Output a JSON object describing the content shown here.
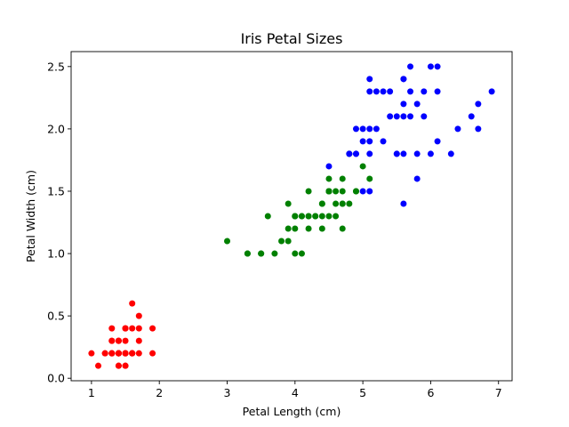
{
  "chart_data": {
    "type": "scatter",
    "title": "Iris Petal Sizes",
    "xlabel": "Petal Length (cm)",
    "ylabel": "Petal Width (cm)",
    "xlim": [
      0.7,
      7.2
    ],
    "ylim": [
      -0.02,
      2.62
    ],
    "xticks": [
      1,
      2,
      3,
      4,
      5,
      6,
      7
    ],
    "xtick_labels": [
      "1",
      "2",
      "3",
      "4",
      "5",
      "6",
      "7"
    ],
    "yticks": [
      0.0,
      0.5,
      1.0,
      1.5,
      2.0,
      2.5
    ],
    "ytick_labels": [
      "0.0",
      "0.5",
      "1.0",
      "1.5",
      "2.0",
      "2.5"
    ],
    "grid": false,
    "series": [
      {
        "color": "#ff0000",
        "points": [
          [
            1.4,
            0.2
          ],
          [
            1.4,
            0.2
          ],
          [
            1.3,
            0.2
          ],
          [
            1.5,
            0.2
          ],
          [
            1.4,
            0.2
          ],
          [
            1.7,
            0.4
          ],
          [
            1.4,
            0.3
          ],
          [
            1.5,
            0.2
          ],
          [
            1.4,
            0.2
          ],
          [
            1.5,
            0.1
          ],
          [
            1.5,
            0.2
          ],
          [
            1.6,
            0.2
          ],
          [
            1.4,
            0.1
          ],
          [
            1.1,
            0.1
          ],
          [
            1.2,
            0.2
          ],
          [
            1.5,
            0.4
          ],
          [
            1.3,
            0.4
          ],
          [
            1.4,
            0.3
          ],
          [
            1.7,
            0.3
          ],
          [
            1.5,
            0.3
          ],
          [
            1.7,
            0.2
          ],
          [
            1.5,
            0.4
          ],
          [
            1.0,
            0.2
          ],
          [
            1.7,
            0.5
          ],
          [
            1.9,
            0.2
          ],
          [
            1.6,
            0.2
          ],
          [
            1.6,
            0.4
          ],
          [
            1.5,
            0.2
          ],
          [
            1.4,
            0.2
          ],
          [
            1.6,
            0.2
          ],
          [
            1.6,
            0.2
          ],
          [
            1.5,
            0.4
          ],
          [
            1.5,
            0.1
          ],
          [
            1.4,
            0.2
          ],
          [
            1.5,
            0.2
          ],
          [
            1.2,
            0.2
          ],
          [
            1.3,
            0.2
          ],
          [
            1.4,
            0.1
          ],
          [
            1.3,
            0.2
          ],
          [
            1.5,
            0.2
          ],
          [
            1.3,
            0.3
          ],
          [
            1.3,
            0.3
          ],
          [
            1.3,
            0.2
          ],
          [
            1.6,
            0.6
          ],
          [
            1.9,
            0.4
          ],
          [
            1.4,
            0.3
          ],
          [
            1.6,
            0.2
          ],
          [
            1.4,
            0.2
          ],
          [
            1.5,
            0.2
          ],
          [
            1.4,
            0.2
          ]
        ]
      },
      {
        "color": "#008000",
        "points": [
          [
            4.7,
            1.4
          ],
          [
            4.5,
            1.5
          ],
          [
            4.9,
            1.5
          ],
          [
            4.0,
            1.3
          ],
          [
            4.6,
            1.5
          ],
          [
            4.5,
            1.3
          ],
          [
            4.7,
            1.6
          ],
          [
            3.3,
            1.0
          ],
          [
            4.6,
            1.3
          ],
          [
            3.9,
            1.4
          ],
          [
            3.5,
            1.0
          ],
          [
            4.2,
            1.5
          ],
          [
            4.0,
            1.0
          ],
          [
            4.7,
            1.4
          ],
          [
            3.6,
            1.3
          ],
          [
            4.4,
            1.4
          ],
          [
            4.5,
            1.5
          ],
          [
            4.1,
            1.0
          ],
          [
            4.5,
            1.5
          ],
          [
            3.9,
            1.1
          ],
          [
            4.8,
            1.8
          ],
          [
            4.0,
            1.3
          ],
          [
            4.9,
            1.5
          ],
          [
            4.7,
            1.2
          ],
          [
            4.3,
            1.3
          ],
          [
            4.4,
            1.4
          ],
          [
            4.8,
            1.4
          ],
          [
            5.0,
            1.7
          ],
          [
            4.5,
            1.5
          ],
          [
            3.5,
            1.0
          ],
          [
            3.8,
            1.1
          ],
          [
            3.7,
            1.0
          ],
          [
            3.9,
            1.2
          ],
          [
            5.1,
            1.6
          ],
          [
            4.5,
            1.5
          ],
          [
            4.5,
            1.6
          ],
          [
            4.7,
            1.5
          ],
          [
            4.4,
            1.3
          ],
          [
            4.1,
            1.3
          ],
          [
            4.0,
            1.3
          ],
          [
            4.4,
            1.2
          ],
          [
            4.6,
            1.4
          ],
          [
            4.0,
            1.2
          ],
          [
            3.3,
            1.0
          ],
          [
            4.2,
            1.3
          ],
          [
            4.2,
            1.2
          ],
          [
            4.2,
            1.3
          ],
          [
            4.3,
            1.3
          ],
          [
            3.0,
            1.1
          ],
          [
            4.1,
            1.3
          ]
        ]
      },
      {
        "color": "#0000ff",
        "points": [
          [
            6.0,
            2.5
          ],
          [
            5.1,
            1.9
          ],
          [
            5.9,
            2.1
          ],
          [
            5.6,
            1.8
          ],
          [
            5.8,
            2.2
          ],
          [
            6.6,
            2.1
          ],
          [
            4.5,
            1.7
          ],
          [
            6.3,
            1.8
          ],
          [
            5.8,
            1.8
          ],
          [
            6.1,
            2.5
          ],
          [
            5.1,
            2.0
          ],
          [
            5.3,
            1.9
          ],
          [
            5.5,
            2.1
          ],
          [
            5.0,
            2.0
          ],
          [
            5.1,
            2.4
          ],
          [
            5.3,
            2.3
          ],
          [
            5.5,
            1.8
          ],
          [
            6.7,
            2.2
          ],
          [
            6.9,
            2.3
          ],
          [
            5.0,
            1.5
          ],
          [
            5.7,
            2.3
          ],
          [
            4.9,
            2.0
          ],
          [
            6.7,
            2.0
          ],
          [
            4.9,
            1.8
          ],
          [
            5.7,
            2.1
          ],
          [
            6.0,
            1.8
          ],
          [
            4.8,
            1.8
          ],
          [
            4.9,
            1.8
          ],
          [
            5.6,
            2.1
          ],
          [
            5.8,
            1.6
          ],
          [
            6.1,
            1.9
          ],
          [
            6.4,
            2.0
          ],
          [
            5.6,
            2.2
          ],
          [
            5.1,
            1.5
          ],
          [
            5.6,
            1.4
          ],
          [
            6.1,
            2.3
          ],
          [
            5.6,
            2.4
          ],
          [
            5.5,
            1.8
          ],
          [
            4.8,
            1.8
          ],
          [
            5.4,
            2.1
          ],
          [
            5.6,
            2.4
          ],
          [
            5.1,
            2.3
          ],
          [
            5.9,
            2.3
          ],
          [
            5.7,
            2.5
          ],
          [
            5.2,
            2.3
          ],
          [
            5.0,
            1.9
          ],
          [
            5.2,
            2.0
          ],
          [
            5.4,
            2.3
          ],
          [
            5.1,
            1.8
          ]
        ]
      }
    ]
  }
}
